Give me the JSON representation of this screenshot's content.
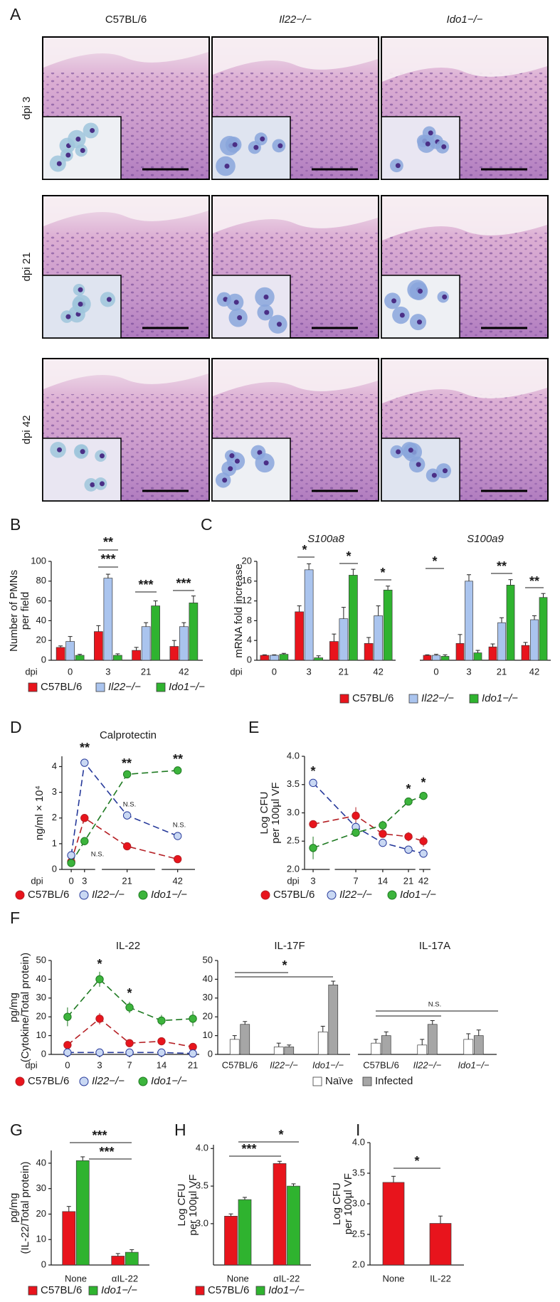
{
  "panel_a": {
    "panel": "A",
    "columns": [
      "C57BL/6",
      "Il22−/−",
      "Ido1−/−"
    ],
    "rows": [
      "dpi 3",
      "dpi 21",
      "dpi 42"
    ]
  },
  "chart_data": [
    {
      "panel": "B",
      "type": "bar",
      "ylabel": [
        "Number of PMNs",
        "per field"
      ],
      "xlabel": "dpi",
      "categories": [
        "0",
        "3",
        "21",
        "42"
      ],
      "ylim": [
        0,
        100
      ],
      "yticks": [
        0,
        20,
        40,
        60,
        80,
        100
      ],
      "series": [
        {
          "name": "C57BL/6",
          "color": "#e8141c",
          "values": [
            13,
            29,
            10,
            14
          ],
          "errors": [
            1.5,
            6,
            3,
            6
          ]
        },
        {
          "name": "Il22−/−",
          "color": "#aac4ee",
          "values": [
            19,
            83,
            34,
            34
          ],
          "errors": [
            5,
            4,
            4,
            4
          ]
        },
        {
          "name": "Ido1−/−",
          "color": "#2fb32f",
          "values": [
            5,
            5,
            55,
            58
          ],
          "errors": [
            1,
            1.5,
            5,
            7
          ]
        }
      ],
      "annotations": [
        "**",
        "***",
        "***",
        "***"
      ]
    },
    {
      "panel": "C",
      "type": "bar",
      "title": "S100a8",
      "ylabel": [
        "mRNA fold increase"
      ],
      "xlabel": "dpi",
      "categories": [
        "0",
        "3",
        "21",
        "42"
      ],
      "ylim": [
        0,
        20
      ],
      "yticks": [
        0,
        4,
        8,
        12,
        16,
        20
      ],
      "series": [
        {
          "name": "C57BL/6",
          "color": "#e8141c",
          "values": [
            1,
            9.8,
            3.8,
            3.4
          ],
          "errors": [
            0.1,
            1.2,
            1.5,
            1.2
          ]
        },
        {
          "name": "Il22−/−",
          "color": "#aac4ee",
          "values": [
            1,
            18.3,
            8.4,
            9
          ],
          "errors": [
            0.1,
            1.2,
            2.3,
            2
          ]
        },
        {
          "name": "Ido1−/−",
          "color": "#2fb32f",
          "values": [
            1.2,
            0.5,
            17.2,
            14.2
          ],
          "errors": [
            0.2,
            0.4,
            1.2,
            0.8
          ]
        }
      ],
      "annotations": [
        "*",
        "*",
        "*"
      ]
    },
    {
      "type": "bar",
      "title": "S100a9",
      "categories": [
        "0",
        "3",
        "21",
        "42"
      ],
      "ylim": [
        0,
        20
      ],
      "series": [
        {
          "color": "#e8141c",
          "values": [
            1,
            3.4,
            2.7,
            3
          ],
          "errors": [
            0.1,
            1.8,
            0.6,
            0.6
          ]
        },
        {
          "color": "#aac4ee",
          "values": [
            1,
            16,
            7.6,
            8.2
          ],
          "errors": [
            0.2,
            1.3,
            1,
            0.8
          ]
        },
        {
          "color": "#2fb32f",
          "values": [
            0.8,
            1.5,
            15.2,
            12.7
          ],
          "errors": [
            0.3,
            0.5,
            1.1,
            0.8
          ]
        }
      ],
      "annotations": [
        "*",
        "**",
        "**"
      ]
    },
    {
      "panel": "D",
      "type": "line",
      "title": "Calprotectin",
      "ylabel": [
        "ng/ml × 10⁴"
      ],
      "xlabel": "dpi",
      "categories": [
        "0",
        "3",
        "21",
        "42"
      ],
      "ylim": [
        0,
        4.4
      ],
      "yticks": [
        0,
        1,
        2,
        3,
        4
      ],
      "series": [
        {
          "name": "C57BL/6",
          "color": "#e8141c",
          "line_color": "#b52025",
          "values": [
            0.3,
            2.0,
            0.9,
            0.4
          ],
          "errors": [
            0.05,
            0.1,
            0.05,
            0.05
          ]
        },
        {
          "name": "Il22−/−",
          "color": "#c9d8f3",
          "line_color": "#26399a",
          "values": [
            0.55,
            4.15,
            2.1,
            1.3
          ],
          "errors": [
            0.1,
            0.15,
            0.12,
            0.15
          ]
        },
        {
          "name": "Ido1−/−",
          "color": "#3cb43c",
          "line_color": "#1f7a22",
          "values": [
            0.25,
            1.1,
            3.7,
            3.85
          ],
          "errors": [
            0.05,
            0.1,
            0.1,
            0.1
          ]
        }
      ],
      "annotations": [
        "**",
        "**",
        "**",
        "N.S.",
        "N.S.",
        "N.S."
      ]
    },
    {
      "panel": "E",
      "type": "line",
      "ylabel": [
        "Log CFU",
        "per 100µl VF"
      ],
      "xlabel": "dpi",
      "categories": [
        "3",
        "7",
        "14",
        "21",
        "42"
      ],
      "ylim": [
        2,
        4
      ],
      "yticks": [
        {
          "value": 2,
          "label": "2.0"
        },
        {
          "value": 2.5,
          "label": "2.5"
        },
        {
          "value": 3,
          "label": "3.0"
        },
        {
          "value": 3.5,
          "label": "3.5"
        },
        {
          "value": 4,
          "label": "4.0"
        }
      ],
      "series": [
        {
          "name": "C57BL/6",
          "color": "#e8141c",
          "line_color": "#b52025",
          "values": [
            2.8,
            2.95,
            2.63,
            2.58,
            2.5
          ],
          "errors": [
            0.05,
            0.15,
            0.05,
            0.08,
            0.1
          ]
        },
        {
          "name": "Il22−/−",
          "color": "#c9d8f3",
          "line_color": "#26399a",
          "values": [
            3.53,
            2.75,
            2.47,
            2.35,
            2.28
          ],
          "errors": [
            0.05,
            0.08,
            0.04,
            0.04,
            0.06
          ]
        },
        {
          "name": "Ido1−/−",
          "color": "#3cb43c",
          "line_color": "#1f7a22",
          "values": [
            2.38,
            2.65,
            2.78,
            3.2,
            3.3
          ],
          "errors": [
            0.2,
            0.05,
            0.08,
            0.05,
            0.06
          ]
        }
      ],
      "annotations": [
        "*",
        "*",
        "*"
      ]
    },
    {
      "panel": "F",
      "type": "line",
      "title": "IL-22",
      "ylabel": [
        "pg/mg",
        "(Cytokine/Total protein)"
      ],
      "xlabel": "dpi",
      "categories": [
        "0",
        "3",
        "7",
        "14",
        "21"
      ],
      "ylim": [
        0,
        50
      ],
      "yticks": [
        0,
        10,
        20,
        30,
        40,
        50
      ],
      "series": [
        {
          "name": "C57BL/6",
          "color": "#e8141c",
          "line_color": "#b52025",
          "values": [
            5,
            19,
            6,
            7,
            4
          ],
          "errors": [
            1.5,
            3,
            1.5,
            2,
            2
          ]
        },
        {
          "name": "Il22−/−",
          "color": "#c9d8f3",
          "line_color": "#26399a",
          "values": [
            1,
            1,
            1,
            1,
            0.5
          ],
          "errors": [
            0.5,
            0.5,
            0.5,
            0.5,
            0.3
          ]
        },
        {
          "name": "Ido1−/−",
          "color": "#3cb43c",
          "line_color": "#1f7a22",
          "values": [
            20,
            40,
            25,
            18,
            19
          ],
          "errors": [
            5,
            4,
            3,
            3,
            4
          ]
        }
      ],
      "annotations": [
        "*",
        "*"
      ]
    },
    {
      "type": "bar",
      "title": "IL-17F",
      "categories": [
        "C57BL/6",
        "Il22−/−",
        "Ido1−/−"
      ],
      "ylim": [
        0,
        50
      ],
      "yticks": [
        0,
        10,
        20,
        30,
        40,
        50
      ],
      "series": [
        {
          "name": "Naïve",
          "color": "#ffffff",
          "values": [
            8,
            4,
            12
          ],
          "errors": [
            2,
            2,
            3
          ]
        },
        {
          "name": "Infected",
          "color": "#a6a6a6",
          "values": [
            16,
            4,
            37
          ],
          "errors": [
            1.5,
            1,
            2
          ]
        }
      ],
      "annotations": [
        "*"
      ]
    },
    {
      "type": "bar",
      "title": "IL-17A",
      "categories": [
        "C57BL/6",
        "Il22−/−",
        "Ido1−/−"
      ],
      "ylim": [
        0,
        50
      ],
      "series": [
        {
          "color": "#ffffff",
          "values": [
            6,
            5,
            8
          ],
          "errors": [
            2,
            3,
            3
          ]
        },
        {
          "color": "#a6a6a6",
          "values": [
            10,
            16,
            10
          ],
          "errors": [
            2,
            2,
            3
          ]
        }
      ],
      "annotations": [
        "N.S."
      ]
    },
    {
      "panel": "G",
      "type": "bar",
      "ylabel": [
        "pg/mg",
        "(IL-22/Total protein)"
      ],
      "categories": [
        "None",
        "αIL-22"
      ],
      "ylim": [
        0,
        45
      ],
      "yticks": [
        0,
        10,
        20,
        30,
        40
      ],
      "series": [
        {
          "name": "C57BL/6",
          "color": "#e8141c",
          "values": [
            21,
            3.5
          ],
          "errors": [
            2,
            1
          ]
        },
        {
          "name": "Ido1−/−",
          "color": "#2fb32f",
          "values": [
            41,
            5
          ],
          "errors": [
            1.5,
            1
          ]
        }
      ],
      "annotations": [
        "***",
        "***"
      ]
    },
    {
      "panel": "H",
      "type": "bar",
      "ylabel": [
        "Log CFU",
        "per 100µl VF"
      ],
      "categories": [
        "None",
        "αIL-22"
      ],
      "ylim": [
        2.45,
        4.05
      ],
      "yticks": [
        {
          "value": 3,
          "label": "3.0"
        },
        {
          "value": 3.5,
          "label": "3.5"
        },
        {
          "value": 4,
          "label": "4.0"
        }
      ],
      "series": [
        {
          "name": "C57BL/6",
          "color": "#e8141c",
          "values": [
            3.1,
            3.8
          ],
          "errors": [
            0.03,
            0.03
          ]
        },
        {
          "name": "Ido1−/−",
          "color": "#2fb32f",
          "values": [
            3.32,
            3.5
          ],
          "errors": [
            0.03,
            0.03
          ]
        }
      ],
      "annotations": [
        "*",
        "***"
      ]
    },
    {
      "panel": "I",
      "type": "bar",
      "ylabel": [
        "Log CFU",
        "per 100µl VF"
      ],
      "categories": [
        "None",
        "IL-22"
      ],
      "ylim": [
        2,
        4
      ],
      "yticks": [
        {
          "value": 2,
          "label": "2.0"
        },
        {
          "value": 2.5,
          "label": "2.5"
        },
        {
          "value": 3,
          "label": "3.0"
        },
        {
          "value": 3.5,
          "label": "3.5"
        },
        {
          "value": 4,
          "label": "4.0"
        }
      ],
      "series": [
        {
          "color": "#e8141c",
          "values": [
            3.35,
            2.68
          ],
          "errors": [
            0.1,
            0.12
          ]
        }
      ],
      "annotations": [
        "*"
      ]
    }
  ]
}
